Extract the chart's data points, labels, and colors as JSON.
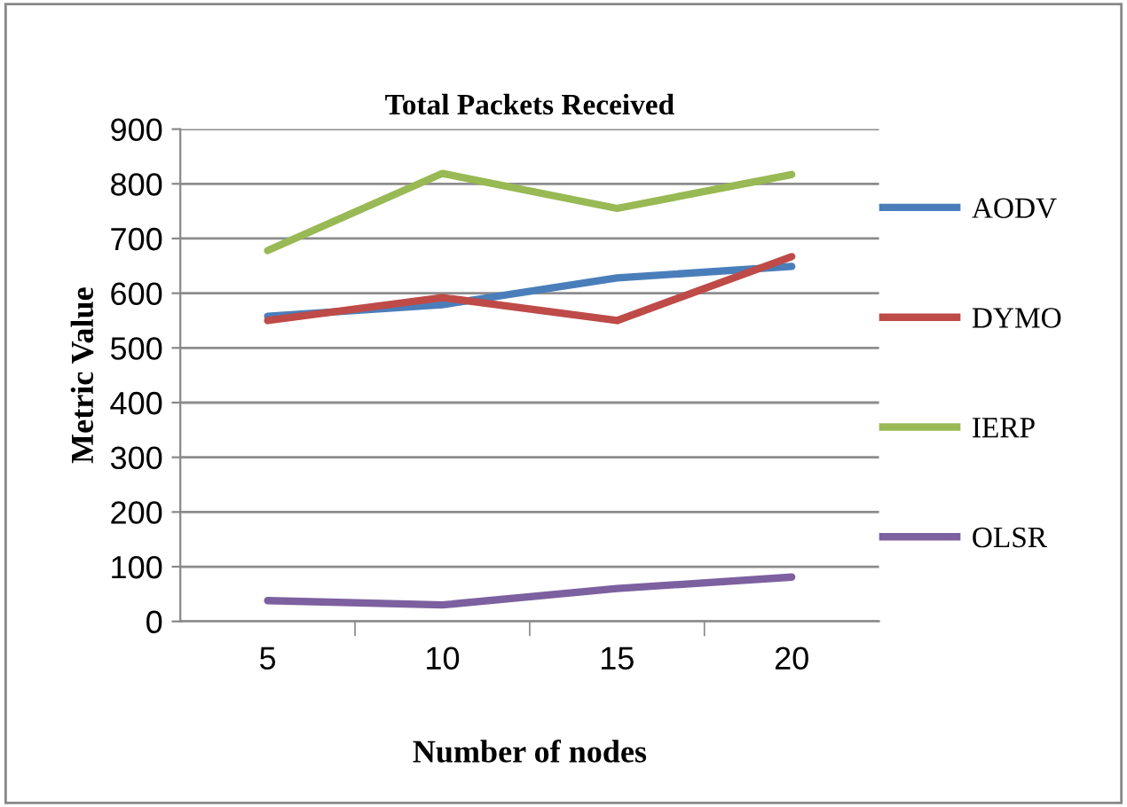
{
  "chart_data": {
    "type": "line",
    "title": "Total Packets Received",
    "xlabel": "Number of nodes",
    "ylabel": "Metric Value",
    "categories": [
      "5",
      "10",
      "15",
      "20"
    ],
    "series": [
      {
        "name": "AODV",
        "color": "#4a7ebb",
        "values": [
          558,
          579,
          628,
          649
        ]
      },
      {
        "name": "DYMO",
        "color": "#be4b48",
        "values": [
          550,
          592,
          550,
          667
        ]
      },
      {
        "name": "IERP",
        "color": "#98b954",
        "values": [
          678,
          819,
          755,
          817
        ]
      },
      {
        "name": "OLSR",
        "color": "#7d60a0",
        "values": [
          38,
          30,
          60,
          81
        ]
      }
    ],
    "ylim": [
      0,
      900
    ],
    "yticks": [
      0,
      100,
      200,
      300,
      400,
      500,
      600,
      700,
      800,
      900
    ],
    "grid": "y",
    "legend": "right",
    "marker": "none",
    "line_style": "solid"
  }
}
